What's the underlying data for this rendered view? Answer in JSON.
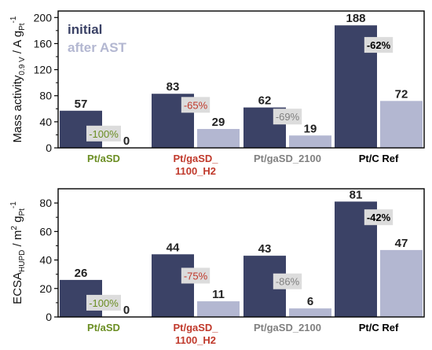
{
  "colors": {
    "initial": "#3b4266",
    "after_ast": "#b3b7d1",
    "axis": "#000000",
    "label_box": "#dcdcdc",
    "category_text": {
      "Pt/aSD": "#6b8e23",
      "Pt/gaSD_1100_H2": "#c0392b",
      "Pt/gaSD_2100": "#808080",
      "Pt/C Ref": "#000000"
    }
  },
  "chart_data": [
    {
      "type": "bar",
      "legend": {
        "position": "top-left",
        "entries": [
          "initial",
          "after AST"
        ]
      },
      "ylabel": "Mass activity",
      "ylabel_sub": "0.9 V",
      "ylabel_unit": " / A g",
      "ylabel_unit_sub": "Pt",
      "ylabel_sup": "-1",
      "ylim": [
        0,
        210
      ],
      "yticks": [
        0,
        40,
        80,
        120,
        160,
        200
      ],
      "categories": [
        [
          "Pt/aSD"
        ],
        [
          "Pt/gaSD_",
          "1100_H2"
        ],
        [
          "Pt/gaSD_2100"
        ],
        [
          "Pt/C Ref"
        ]
      ],
      "category_keys": [
        "Pt/aSD",
        "Pt/gaSD_1100_H2",
        "Pt/gaSD_2100",
        "Pt/C Ref"
      ],
      "series": [
        {
          "name": "initial",
          "values": [
            57,
            83,
            62,
            188
          ]
        },
        {
          "name": "after AST",
          "values": [
            0,
            29,
            19,
            72
          ]
        }
      ],
      "changes": [
        "-100%",
        "-65%",
        "-69%",
        "-62%"
      ],
      "change_levels": [
        22,
        66,
        48,
        158
      ]
    },
    {
      "type": "bar",
      "ylabel": "ECSA",
      "ylabel_sub": "HUPD",
      "ylabel_unit": " / m",
      "ylabel_unit_sup": "2",
      "ylabel_unit2": " g",
      "ylabel_unit2_sub": "Pt",
      "ylabel_sup": "-1",
      "ylim": [
        0,
        90
      ],
      "yticks": [
        0,
        20,
        40,
        60,
        80
      ],
      "categories": [
        [
          "Pt/aSD"
        ],
        [
          "Pt/gaSD_",
          "1100_H2"
        ],
        [
          "Pt/gaSD_2100"
        ],
        [
          "Pt/C Ref"
        ]
      ],
      "category_keys": [
        "Pt/aSD",
        "Pt/gaSD_1100_H2",
        "Pt/gaSD_2100",
        "Pt/C Ref"
      ],
      "series": [
        {
          "name": "initial",
          "values": [
            26,
            44,
            43,
            81
          ]
        },
        {
          "name": "after AST",
          "values": [
            0,
            11,
            6,
            47
          ]
        }
      ],
      "changes": [
        "-100%",
        "-75%",
        "-86%",
        "-42%"
      ],
      "change_levels": [
        10,
        29,
        25,
        70
      ]
    }
  ]
}
